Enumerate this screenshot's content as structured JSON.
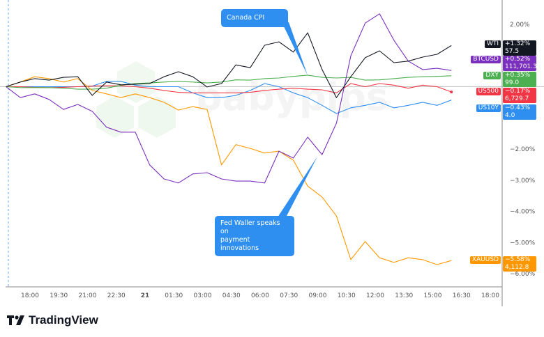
{
  "chart_data": {
    "type": "line",
    "title": "",
    "xlabel": "",
    "ylabel": "",
    "y_unit": "%",
    "ylim": [
      -6.3,
      2.75
    ],
    "grid": false,
    "x": [
      "16:45",
      "17:30",
      "18:15",
      "19:00",
      "19:45",
      "20:30",
      "21:15",
      "22:00",
      "22:45",
      "23:30",
      "00:15",
      "01:00",
      "01:45",
      "02:30",
      "03:15",
      "04:00",
      "04:45",
      "05:30",
      "06:15",
      "07:00",
      "07:45",
      "08:30",
      "09:15",
      "10:00",
      "10:45",
      "11:30",
      "12:15",
      "13:00",
      "13:45",
      "14:30",
      "15:15",
      "16:00"
    ],
    "x_tick_labels": [
      "18:00",
      "19:30",
      "21:00",
      "22:30",
      "21",
      "01:30",
      "03:00",
      "04:30",
      "06:00",
      "07:30",
      "09:00",
      "10:30",
      "12:00",
      "13:30",
      "15:00",
      "16:30",
      "18:00"
    ],
    "y_tick_labels": [
      {
        "value": 2,
        "label": "2.00%"
      },
      {
        "value": -2,
        "label": "-2.00%"
      },
      {
        "value": -3,
        "label": "-3.00%"
      },
      {
        "value": -4,
        "label": "-4.00%"
      },
      {
        "value": -5,
        "label": "-5.00%"
      },
      {
        "value": -6,
        "label": "-6.00%"
      }
    ],
    "series": [
      {
        "name": "WTI",
        "color": "#131722",
        "change": "+1.32%",
        "price": "57.5",
        "values": [
          0,
          0.15,
          0.26,
          0.21,
          0.3,
          0.32,
          -0.28,
          0.15,
          0.06,
          0.08,
          0.1,
          0.32,
          0.48,
          0.32,
          -0.01,
          0.1,
          0.7,
          0.61,
          1.33,
          1.44,
          1.11,
          1.73,
          0.55,
          -0.35,
          0.32,
          0.93,
          1.15,
          0.77,
          0.82,
          0.95,
          1.04,
          1.32
        ]
      },
      {
        "name": "BTCUSD",
        "color": "#7b2fbe",
        "change": "+0.52%",
        "price": "111,701.3",
        "values": [
          0,
          -0.35,
          -0.23,
          -0.41,
          -0.73,
          -0.57,
          -0.79,
          -1.3,
          -1.46,
          -1.46,
          -2.51,
          -2.96,
          -3.09,
          -2.8,
          -2.76,
          -2.96,
          -3.03,
          -3.03,
          -3.09,
          -2.07,
          -2.29,
          -1.62,
          -2.18,
          -1.17,
          0.99,
          2.04,
          2.34,
          1.49,
          0.82,
          0.55,
          0.59,
          0.52
        ]
      },
      {
        "name": "DXY",
        "color": "#4caf50",
        "change": "+0.35%",
        "price": "99.0",
        "values": [
          0,
          -0.03,
          -0.03,
          -0.03,
          -0.05,
          -0.08,
          -0.08,
          -0.05,
          0.05,
          0.1,
          0.12,
          0.15,
          0.17,
          0.15,
          0.12,
          0.15,
          0.22,
          0.21,
          0.26,
          0.28,
          0.33,
          0.37,
          0.3,
          0.28,
          0.3,
          0.21,
          0.22,
          0.26,
          0.3,
          0.32,
          0.33,
          0.35
        ]
      },
      {
        "name": "US500",
        "color": "#f23645",
        "change": "-0.17%",
        "price": "6,729.7",
        "values": [
          0,
          0,
          -0.02,
          -0.03,
          -0.02,
          0,
          0.02,
          0.03,
          0.03,
          0,
          -0.05,
          -0.12,
          -0.18,
          -0.2,
          -0.2,
          -0.2,
          -0.2,
          -0.18,
          -0.12,
          -0.08,
          -0.05,
          -0.08,
          -0.1,
          -0.2,
          0.1,
          0.0,
          0.1,
          0.05,
          -0.05,
          0.05,
          0.0,
          -0.17
        ]
      },
      {
        "name": "US10Y",
        "color": "#2e8ff0",
        "change": "-0.43%",
        "price": "4.0",
        "values": [
          0,
          0,
          0,
          0,
          0,
          0,
          0.02,
          0.17,
          0.17,
          0.05,
          0,
          0,
          0,
          -0.2,
          -0.35,
          -0.35,
          -0.28,
          -0.12,
          0.1,
          0,
          -0.2,
          -0.35,
          -0.6,
          -0.86,
          -0.68,
          -0.6,
          -0.5,
          -0.68,
          -0.6,
          -0.5,
          -0.6,
          -0.43
        ]
      },
      {
        "name": "XAUUSD",
        "color": "#ff9800",
        "change": "-5.58%",
        "price": "4,112.8",
        "values": [
          0,
          0.15,
          0.32,
          0.26,
          0.15,
          0.26,
          -0.12,
          -0.23,
          -0.35,
          -0.23,
          -0.35,
          -0.5,
          -0.75,
          -0.64,
          -0.73,
          -2.51,
          -1.86,
          -1.98,
          -2.13,
          -2.07,
          -2.36,
          -3.19,
          -3.54,
          -4.15,
          -5.55,
          -4.97,
          -5.49,
          -5.64,
          -5.49,
          -5.55,
          -5.71,
          -5.58
        ]
      }
    ],
    "annotations": [
      {
        "text": "Canada CPI",
        "x": "08:30",
        "y": 0.37
      },
      {
        "text": "Fed Waller speaks on payment innovations",
        "x": "09:15",
        "y": -2.25
      }
    ]
  },
  "annotations": {
    "canada_cpi": "Canada CPI",
    "fed_waller_line1": "Fed Waller speaks on",
    "fed_waller_line2": "payment innovations"
  },
  "watermark": "babypips",
  "branding": {
    "logo_text": "TradingView"
  },
  "colors": {
    "annotation": "#2e8ff0",
    "axis": "#787b86"
  }
}
